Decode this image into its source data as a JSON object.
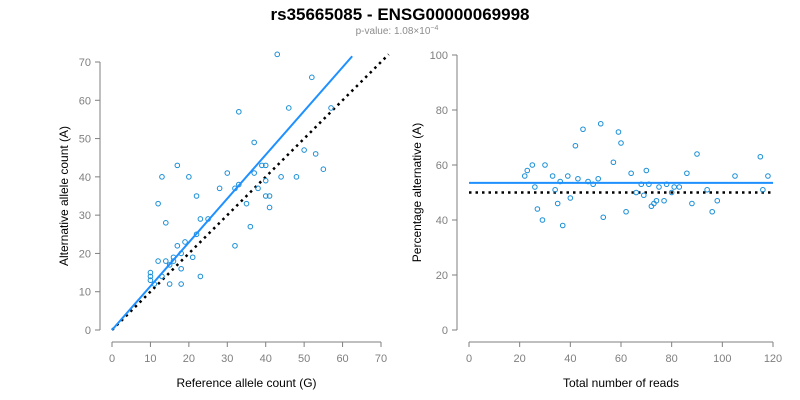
{
  "title": "rs35665085 - ENSG00000069998",
  "subtitle": "p-value: 1.08×10",
  "subtitle_exp": "−4",
  "colors": {
    "points": "#1b8fd6",
    "fit": "#1e90ff",
    "reference": "#000000",
    "axis": "#7f7f7f"
  },
  "chart_data": [
    {
      "type": "scatter",
      "xlabel": "Reference allele count (G)",
      "ylabel": "Alternative allele count (A)",
      "xlim": [
        0,
        70
      ],
      "ylim": [
        0,
        70
      ],
      "xticks": [
        0,
        10,
        20,
        30,
        40,
        50,
        60,
        70
      ],
      "yticks": [
        0,
        10,
        20,
        30,
        40,
        50,
        60,
        70
      ],
      "points": [
        [
          10,
          13
        ],
        [
          10,
          14
        ],
        [
          10,
          15
        ],
        [
          11,
          12
        ],
        [
          12,
          18
        ],
        [
          12,
          33
        ],
        [
          13,
          14
        ],
        [
          13,
          40
        ],
        [
          14,
          28
        ],
        [
          14,
          18
        ],
        [
          15,
          12
        ],
        [
          15,
          17
        ],
        [
          16,
          18
        ],
        [
          16,
          19
        ],
        [
          17,
          22
        ],
        [
          17,
          43
        ],
        [
          18,
          12
        ],
        [
          18,
          16
        ],
        [
          18,
          20
        ],
        [
          19,
          23
        ],
        [
          20,
          40
        ],
        [
          21,
          19
        ],
        [
          22,
          25
        ],
        [
          22,
          35
        ],
        [
          23,
          29
        ],
        [
          23,
          14
        ],
        [
          25,
          29
        ],
        [
          28,
          37
        ],
        [
          30,
          41
        ],
        [
          32,
          22
        ],
        [
          32,
          37
        ],
        [
          33,
          38
        ],
        [
          33,
          57
        ],
        [
          35,
          33
        ],
        [
          36,
          27
        ],
        [
          37,
          49
        ],
        [
          37,
          41
        ],
        [
          38,
          37
        ],
        [
          39,
          43
        ],
        [
          40,
          35
        ],
        [
          40,
          39
        ],
        [
          40,
          43
        ],
        [
          41,
          32
        ],
        [
          41,
          35
        ],
        [
          43,
          72
        ],
        [
          44,
          40
        ],
        [
          46,
          58
        ],
        [
          48,
          40
        ],
        [
          50,
          47
        ],
        [
          52,
          66
        ],
        [
          53,
          46
        ],
        [
          55,
          42
        ],
        [
          57,
          58
        ]
      ],
      "fit_line": {
        "x": [
          0,
          62.5
        ],
        "y": [
          0,
          71.5
        ]
      },
      "reference_line": {
        "x": [
          0,
          72
        ],
        "y": [
          0,
          72
        ]
      }
    },
    {
      "type": "scatter",
      "xlabel": "Total number of reads",
      "ylabel": "Percentage alternative (A)",
      "xlim": [
        0,
        120
      ],
      "ylim": [
        0,
        100
      ],
      "xticks": [
        0,
        20,
        40,
        60,
        80,
        100,
        120
      ],
      "yticks": [
        0,
        20,
        40,
        60,
        80,
        100
      ],
      "points": [
        [
          22,
          56
        ],
        [
          23,
          58
        ],
        [
          25,
          60
        ],
        [
          26,
          52
        ],
        [
          27,
          44
        ],
        [
          29,
          40
        ],
        [
          30,
          60
        ],
        [
          33,
          56
        ],
        [
          34,
          51
        ],
        [
          35,
          46
        ],
        [
          36,
          54
        ],
        [
          37,
          38
        ],
        [
          39,
          56
        ],
        [
          40,
          48
        ],
        [
          42,
          67
        ],
        [
          43,
          55
        ],
        [
          45,
          73
        ],
        [
          47,
          54
        ],
        [
          49,
          53
        ],
        [
          51,
          55
        ],
        [
          52,
          75
        ],
        [
          53,
          41
        ],
        [
          57,
          61
        ],
        [
          59,
          72
        ],
        [
          60,
          68
        ],
        [
          62,
          43
        ],
        [
          64,
          57
        ],
        [
          66,
          50
        ],
        [
          68,
          53
        ],
        [
          69,
          49
        ],
        [
          70,
          58
        ],
        [
          71,
          53
        ],
        [
          72,
          45
        ],
        [
          73,
          46
        ],
        [
          74,
          47
        ],
        [
          75,
          52
        ],
        [
          77,
          47
        ],
        [
          78,
          53
        ],
        [
          80,
          50
        ],
        [
          81,
          52
        ],
        [
          83,
          52
        ],
        [
          86,
          57
        ],
        [
          88,
          46
        ],
        [
          90,
          64
        ],
        [
          94,
          51
        ],
        [
          96,
          43
        ],
        [
          98,
          47
        ],
        [
          105,
          56
        ],
        [
          115,
          63
        ],
        [
          116,
          51
        ],
        [
          118,
          56
        ]
      ],
      "fit_line": {
        "x": [
          0,
          120
        ],
        "y": [
          53.5,
          53.5
        ]
      },
      "reference_line": {
        "x": [
          0,
          120
        ],
        "y": [
          50,
          50
        ]
      }
    }
  ]
}
